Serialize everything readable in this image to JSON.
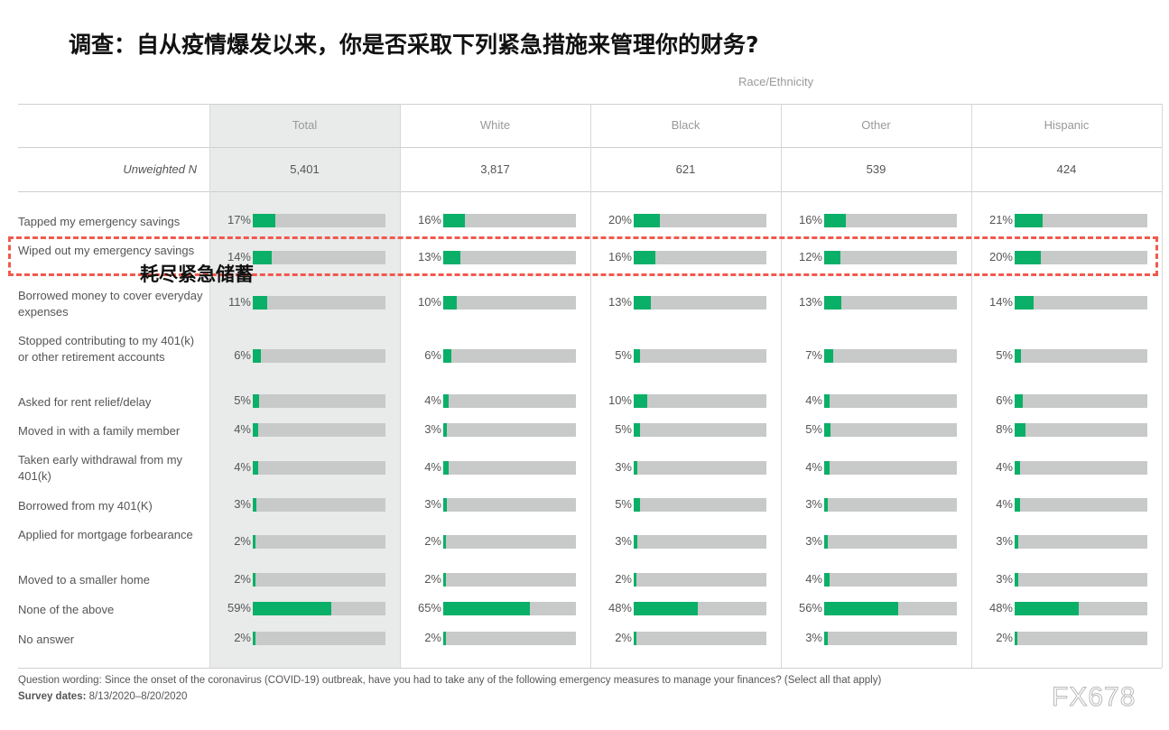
{
  "title": "调查：自从疫情爆发以来，你是否采取下列紧急措施来管理你的财务?",
  "group_label": "Race/Ethnicity",
  "n_label": "Unweighted N",
  "highlight_label": "耗尽紧急储蓄",
  "footnote": {
    "wording": "Question wording: Since the onset of the coronavirus (COVID-19) outbreak, have you had to take any of the following emergency measures to manage your finances? (Select all that apply)",
    "dates_label": "Survey dates:",
    "dates_value": "8/13/2020–8/20/2020"
  },
  "watermark": "FX678",
  "colors": {
    "bar": "#0ab068",
    "track": "#c8c9c9",
    "total_bg": "#e9eaea",
    "highlight": "#f05a4d"
  },
  "chart_data": {
    "type": "bar",
    "title": "调查：自从疫情爆发以来，你是否采取下列紧急措施来管理你的财务?",
    "categories": [
      "Tapped my emergency savings",
      "Wiped out my emergency savings",
      "Borrowed money to cover everyday expenses",
      "Stopped contributing to my 401(k) or other retirement accounts",
      "Asked for rent relief/delay",
      "Moved in with a family member",
      "Taken early withdrawal from my 401(k)",
      "Borrowed from my 401(K)",
      "Applied for mortgage forbearance",
      "Moved to a smaller home",
      "None of the above",
      "No answer"
    ],
    "series": [
      {
        "name": "Total",
        "n": "5,401",
        "values": [
          17,
          14,
          11,
          6,
          5,
          4,
          4,
          3,
          2,
          2,
          59,
          2
        ]
      },
      {
        "name": "White",
        "n": "3,817",
        "values": [
          16,
          13,
          10,
          6,
          4,
          3,
          4,
          3,
          2,
          2,
          65,
          2
        ]
      },
      {
        "name": "Black",
        "n": "621",
        "values": [
          20,
          16,
          13,
          5,
          10,
          5,
          3,
          5,
          3,
          2,
          48,
          2
        ]
      },
      {
        "name": "Other",
        "n": "539",
        "values": [
          16,
          12,
          13,
          7,
          4,
          5,
          4,
          3,
          3,
          4,
          56,
          3
        ]
      },
      {
        "name": "Hispanic",
        "n": "424",
        "values": [
          21,
          20,
          14,
          5,
          6,
          8,
          4,
          4,
          3,
          3,
          48,
          2
        ]
      }
    ],
    "ylim": [
      0,
      100
    ],
    "highlighted_category": "Wiped out my emergency savings"
  }
}
